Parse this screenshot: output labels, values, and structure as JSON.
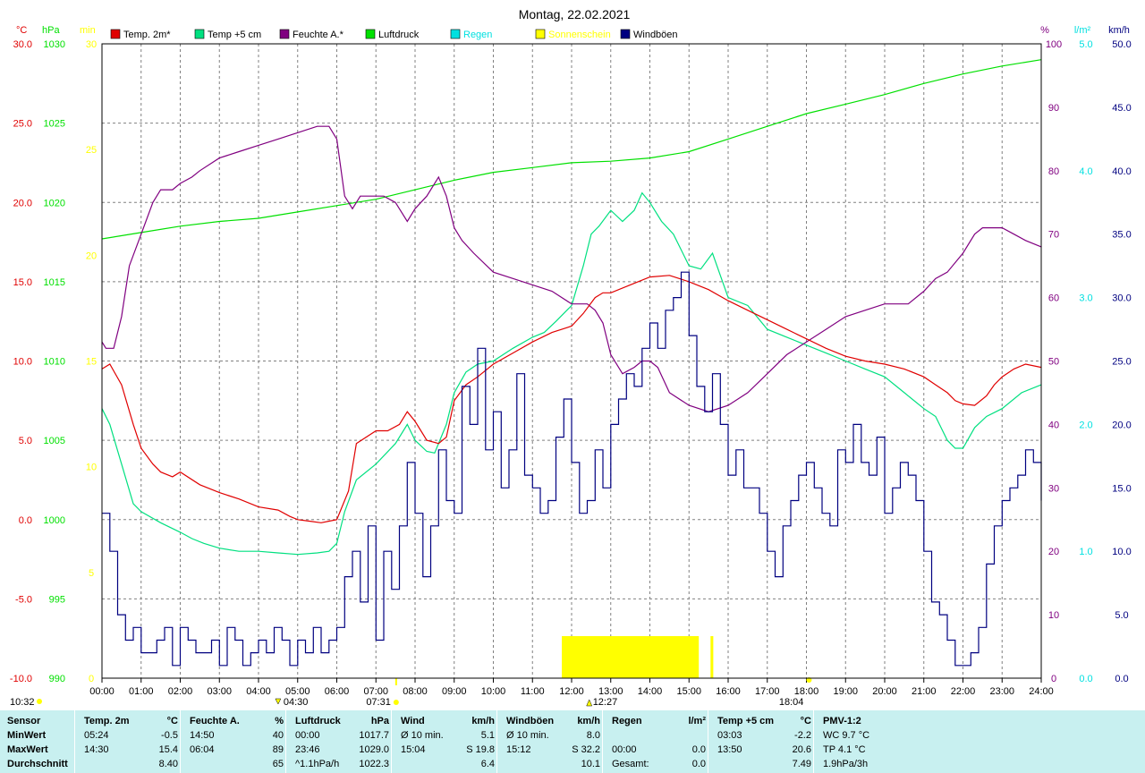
{
  "title": "Montag, 22.02.2021",
  "colors": {
    "temp2m": "#e00000",
    "temp5cm": "#00e080",
    "humidity": "#800080",
    "pressure": "#00e000",
    "rain": "#00e0e0",
    "sunshine": "#ffff00",
    "gusts": "#000080"
  },
  "legend": [
    "Temp. 2m*",
    "Temp +5 cm",
    "Feuchte A.*",
    "Luftdruck",
    "Regen",
    "Sonnenschein",
    "Windböen"
  ],
  "axis_units": {
    "temp": "°C",
    "pressure": "hPa",
    "sun": "min",
    "humidity": "%",
    "rain": "l/m²",
    "wind": "km/h"
  },
  "sun_events": {
    "sunrise": "07:31",
    "sunset": "18:04",
    "noon": "12:27",
    "min_time": "04:30",
    "current_time": "10:32"
  },
  "chart_data": {
    "type": "line",
    "title": "Montag, 22.02.2021",
    "x_ticks": [
      "00:00",
      "01:00",
      "02:00",
      "03:00",
      "04:00",
      "05:00",
      "06:00",
      "07:00",
      "08:00",
      "09:00",
      "10:00",
      "11:00",
      "12:00",
      "13:00",
      "14:00",
      "15:00",
      "16:00",
      "17:00",
      "18:00",
      "19:00",
      "20:00",
      "21:00",
      "22:00",
      "23:00",
      "24:00"
    ],
    "axes": {
      "temp": {
        "label": "°C",
        "range": [
          -10,
          30
        ],
        "ticks": [
          "30.0",
          "25.0",
          "20.0",
          "15.0",
          "10.0",
          "5.0",
          "0.0",
          "-5.0",
          "-10.0"
        ]
      },
      "pressure": {
        "label": "hPa",
        "range": [
          990,
          1030
        ],
        "ticks": [
          "1030",
          "1025",
          "1020",
          "1015",
          "1010",
          "1005",
          "1000",
          "995",
          "990"
        ]
      },
      "sun": {
        "label": "min",
        "range": [
          0,
          30
        ],
        "ticks": [
          "30",
          "25",
          "20",
          "15",
          "10",
          "5",
          "0"
        ]
      },
      "humidity": {
        "label": "%",
        "range": [
          0,
          100
        ],
        "ticks": [
          "100",
          "90",
          "80",
          "70",
          "60",
          "50",
          "40",
          "30",
          "20",
          "10",
          "0"
        ]
      },
      "rain": {
        "label": "l/m²",
        "range": [
          0,
          5
        ],
        "ticks": [
          "5.0",
          "4.0",
          "3.0",
          "2.0",
          "1.0",
          "0.0"
        ]
      },
      "wind": {
        "label": "km/h",
        "range": [
          0,
          50
        ],
        "ticks": [
          "50.0",
          "45.0",
          "40.0",
          "35.0",
          "30.0",
          "25.0",
          "20.0",
          "15.0",
          "10.0",
          "5.0",
          "0.0"
        ]
      }
    },
    "grid": true,
    "series": [
      {
        "name": "Temp. 2m*",
        "axis": "temp",
        "x": [
          0,
          0.2,
          0.5,
          0.8,
          1.0,
          1.3,
          1.5,
          1.8,
          2.0,
          2.5,
          3.0,
          3.5,
          4.0,
          4.5,
          4.8,
          5.0,
          5.3,
          5.6,
          5.8,
          6.0,
          6.3,
          6.5,
          7.0,
          7.3,
          7.6,
          7.8,
          8.0,
          8.3,
          8.6,
          8.8,
          9.0,
          9.3,
          9.6,
          10.0,
          10.5,
          11.0,
          11.5,
          12.0,
          12.3,
          12.6,
          12.8,
          13.0,
          13.5,
          14.0,
          14.5,
          15.0,
          15.5,
          16.0,
          16.5,
          17.0,
          17.5,
          18.0,
          18.5,
          19.0,
          19.5,
          20.0,
          20.5,
          21.0,
          21.3,
          21.6,
          21.8,
          22.0,
          22.3,
          22.6,
          22.8,
          23.0,
          23.3,
          23.6,
          24.0
        ],
        "y": [
          9.5,
          9.8,
          8.5,
          6.0,
          4.5,
          3.5,
          3.0,
          2.7,
          3.0,
          2.2,
          1.7,
          1.3,
          0.8,
          0.6,
          0.2,
          0.0,
          -0.1,
          -0.2,
          -0.1,
          0.0,
          1.8,
          4.8,
          5.6,
          5.6,
          6.0,
          6.8,
          6.2,
          5.0,
          4.8,
          5.2,
          7.5,
          8.5,
          9.0,
          9.8,
          10.5,
          11.2,
          11.8,
          12.2,
          13.0,
          14.0,
          14.3,
          14.3,
          14.8,
          15.3,
          15.4,
          15.0,
          14.5,
          13.8,
          13.2,
          12.6,
          12.0,
          11.4,
          10.8,
          10.3,
          10.0,
          9.8,
          9.5,
          9.0,
          8.5,
          8.0,
          7.5,
          7.3,
          7.2,
          7.8,
          8.5,
          9.0,
          9.5,
          9.8,
          9.6
        ]
      },
      {
        "name": "Temp +5 cm",
        "axis": "temp",
        "x": [
          0,
          0.2,
          0.5,
          0.8,
          1.0,
          1.5,
          2.0,
          2.3,
          2.6,
          3.0,
          3.5,
          4.0,
          4.5,
          5.0,
          5.5,
          5.8,
          6.0,
          6.2,
          6.5,
          7.0,
          7.5,
          7.8,
          8.0,
          8.3,
          8.5,
          8.8,
          9.0,
          9.3,
          9.6,
          10.0,
          10.5,
          11.0,
          11.3,
          11.6,
          12.0,
          12.3,
          12.5,
          12.7,
          13.0,
          13.3,
          13.6,
          13.8,
          14.0,
          14.3,
          14.6,
          15.0,
          15.3,
          15.6,
          16.0,
          16.5,
          17.0,
          17.5,
          18.0,
          18.5,
          19.0,
          19.5,
          20.0,
          20.5,
          21.0,
          21.3,
          21.6,
          21.8,
          22.0,
          22.3,
          22.6,
          23.0,
          23.5,
          24.0
        ],
        "y": [
          7.0,
          6.0,
          3.5,
          1.0,
          0.5,
          -0.2,
          -0.8,
          -1.2,
          -1.5,
          -1.8,
          -2.0,
          -2.0,
          -2.1,
          -2.2,
          -2.1,
          -2.0,
          -1.5,
          0.5,
          2.5,
          3.5,
          4.8,
          6.0,
          5.0,
          4.3,
          4.2,
          6.0,
          8.0,
          9.3,
          9.8,
          10.0,
          10.8,
          11.5,
          11.8,
          12.5,
          13.5,
          16.0,
          18.0,
          18.5,
          19.5,
          18.8,
          19.5,
          20.6,
          20.0,
          18.8,
          18.0,
          16.0,
          15.8,
          16.8,
          14.0,
          13.5,
          12.0,
          11.5,
          11.0,
          10.5,
          10.0,
          9.5,
          9.0,
          8.0,
          7.0,
          6.5,
          5.0,
          4.5,
          4.5,
          5.8,
          6.5,
          7.0,
          8.0,
          8.5
        ]
      },
      {
        "name": "Feuchte A.*",
        "axis": "humidity",
        "x": [
          0,
          0.1,
          0.3,
          0.5,
          0.7,
          1.0,
          1.3,
          1.5,
          1.8,
          2.0,
          2.3,
          2.5,
          3.0,
          3.5,
          4.0,
          4.5,
          5.0,
          5.5,
          5.8,
          6.0,
          6.2,
          6.4,
          6.6,
          6.9,
          7.2,
          7.5,
          7.8,
          8.0,
          8.3,
          8.6,
          8.8,
          9.0,
          9.2,
          9.5,
          10.0,
          10.5,
          11.0,
          11.5,
          12.0,
          12.2,
          12.4,
          12.6,
          12.8,
          13.0,
          13.3,
          13.6,
          13.8,
          14.0,
          14.2,
          14.5,
          15.0,
          15.5,
          16.0,
          16.5,
          17.0,
          17.5,
          18.0,
          18.5,
          19.0,
          19.5,
          20.0,
          20.3,
          20.6,
          21.0,
          21.3,
          21.6,
          22.0,
          22.3,
          22.5,
          22.8,
          23.0,
          23.3,
          23.6,
          24.0
        ],
        "y": [
          53,
          52,
          52,
          57,
          65,
          70,
          75,
          77,
          77,
          78,
          79,
          80,
          82,
          83,
          84,
          85,
          86,
          87,
          87,
          85,
          76,
          74,
          76,
          76,
          76,
          75,
          72,
          74,
          76,
          79,
          76,
          71,
          69,
          67,
          64,
          63,
          62,
          61,
          59,
          59,
          59,
          58,
          56,
          51,
          48,
          49,
          50,
          50,
          49,
          45,
          43,
          42,
          43,
          45,
          48,
          51,
          53,
          55,
          57,
          58,
          59,
          59,
          59,
          61,
          63,
          64,
          67,
          70,
          71,
          71,
          71,
          70,
          69,
          68
        ]
      },
      {
        "name": "Luftdruck",
        "axis": "pressure",
        "x": [
          0,
          1,
          2,
          3,
          4,
          5,
          6,
          7,
          8,
          9,
          10,
          11,
          12,
          13,
          14,
          15,
          16,
          17,
          18,
          19,
          20,
          21,
          22,
          23,
          24
        ],
        "y": [
          1017.7,
          1018.1,
          1018.5,
          1018.8,
          1019.0,
          1019.4,
          1019.8,
          1020.2,
          1020.8,
          1021.4,
          1021.9,
          1022.2,
          1022.5,
          1022.6,
          1022.8,
          1023.2,
          1024.0,
          1024.8,
          1025.6,
          1026.2,
          1026.8,
          1027.5,
          1028.1,
          1028.6,
          1029.0
        ]
      },
      {
        "name": "Windböen",
        "axis": "wind",
        "x": [
          0,
          0.2,
          0.4,
          0.6,
          0.8,
          1.0,
          1.2,
          1.4,
          1.6,
          1.8,
          2.0,
          2.2,
          2.4,
          2.6,
          2.8,
          3.0,
          3.2,
          3.4,
          3.6,
          3.8,
          4.0,
          4.2,
          4.4,
          4.6,
          4.8,
          5.0,
          5.2,
          5.4,
          5.6,
          5.8,
          6.0,
          6.2,
          6.4,
          6.6,
          6.8,
          7.0,
          7.2,
          7.4,
          7.6,
          7.8,
          8.0,
          8.2,
          8.4,
          8.6,
          8.8,
          9.0,
          9.2,
          9.4,
          9.6,
          9.8,
          10.0,
          10.2,
          10.4,
          10.6,
          10.8,
          11.0,
          11.2,
          11.4,
          11.6,
          11.8,
          12.0,
          12.2,
          12.4,
          12.6,
          12.8,
          13.0,
          13.2,
          13.4,
          13.6,
          13.8,
          14.0,
          14.2,
          14.4,
          14.6,
          14.8,
          15.0,
          15.2,
          15.4,
          15.6,
          15.8,
          16.0,
          16.2,
          16.4,
          16.6,
          16.8,
          17.0,
          17.2,
          17.4,
          17.6,
          17.8,
          18.0,
          18.2,
          18.4,
          18.6,
          18.8,
          19.0,
          19.2,
          19.4,
          19.6,
          19.8,
          20.0,
          20.2,
          20.4,
          20.6,
          20.8,
          21.0,
          21.2,
          21.4,
          21.6,
          21.8,
          22.0,
          22.2,
          22.4,
          22.6,
          22.8,
          23.0,
          23.2,
          23.4,
          23.6,
          23.8,
          24.0
        ],
        "y": [
          13,
          10,
          5,
          3,
          4,
          2,
          2,
          3,
          4,
          1,
          4,
          3,
          2,
          2,
          3,
          1,
          4,
          3,
          1,
          2,
          3,
          2,
          4,
          3,
          1,
          3,
          2,
          4,
          2,
          3,
          4,
          8,
          10,
          6,
          12,
          3,
          10,
          7,
          12,
          17,
          13,
          8,
          12,
          18,
          14,
          13,
          23,
          20,
          26,
          18,
          21,
          15,
          18,
          24,
          16,
          15,
          13,
          14,
          19,
          22,
          17,
          13,
          14,
          18,
          15,
          20,
          22,
          24,
          23,
          26,
          28,
          26,
          29,
          30,
          32,
          27,
          23,
          21,
          24,
          20,
          16,
          18,
          15,
          15,
          13,
          10,
          8,
          12,
          14,
          16,
          17,
          15,
          13,
          12,
          18,
          17,
          20,
          17,
          16,
          19,
          13,
          15,
          17,
          16,
          14,
          10,
          6,
          5,
          3,
          1,
          1,
          2,
          4,
          9,
          12,
          14,
          15,
          16,
          18,
          17,
          14
        ]
      }
    ],
    "sunshine_blocks": [
      {
        "start": 11.75,
        "end": 15.25,
        "value": 1
      },
      {
        "start": 15.55,
        "end": 15.62,
        "value": 1
      }
    ]
  },
  "stats": {
    "row_labels": [
      "Sensor",
      "MinWert",
      "MaxWert",
      "Durchschnitt"
    ],
    "columns": [
      {
        "header": "Temp. 2m",
        "unit": "°C",
        "rows": [
          [
            "05:24",
            "-0.5"
          ],
          [
            "14:30",
            "15.4"
          ],
          [
            "",
            "8.40"
          ]
        ]
      },
      {
        "header": "Feuchte A.",
        "unit": "%",
        "rows": [
          [
            "14:50",
            "40"
          ],
          [
            "06:04",
            "89"
          ],
          [
            "",
            "65"
          ]
        ]
      },
      {
        "header": "Luftdruck",
        "unit": "hPa",
        "rows": [
          [
            "00:00",
            "1017.7"
          ],
          [
            "23:46",
            "1029.0"
          ],
          [
            "^1.1hPa/h",
            "1022.3"
          ]
        ]
      },
      {
        "header": "Wind",
        "unit": "km/h",
        "rows": [
          [
            "Ø 10 min.",
            "5.1"
          ],
          [
            "15:04",
            "S 19.8"
          ],
          [
            "",
            "6.4"
          ]
        ]
      },
      {
        "header": "Windböen",
        "unit": "km/h",
        "rows": [
          [
            "Ø 10 min.",
            "8.0"
          ],
          [
            "15:12",
            "S 32.2"
          ],
          [
            "",
            "10.1"
          ]
        ]
      },
      {
        "header": "Regen",
        "unit": "l/m²",
        "rows": [
          [
            "",
            ""
          ],
          [
            "00:00",
            "0.0"
          ],
          [
            "Gesamt:",
            "0.0"
          ]
        ]
      },
      {
        "header": "Temp +5 cm",
        "unit": "°C",
        "rows": [
          [
            "03:03",
            "-2.2"
          ],
          [
            "13:50",
            "20.6"
          ],
          [
            "",
            "7.49"
          ]
        ]
      },
      {
        "header": "PMV-1:2",
        "unit": "",
        "rows": [
          [
            "WC 9.7 °C",
            ""
          ],
          [
            "TP 4.1 °C",
            ""
          ],
          [
            "1.9hPa/3h",
            ""
          ]
        ]
      }
    ]
  }
}
